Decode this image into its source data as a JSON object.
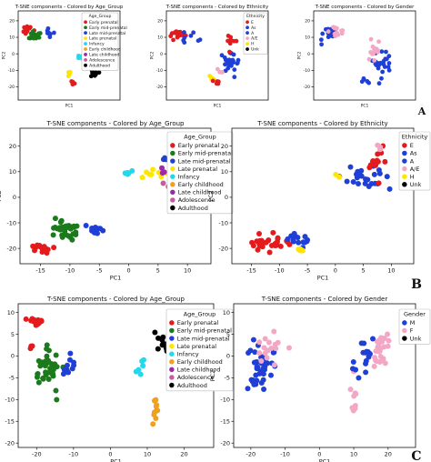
{
  "row_letters": [
    "A",
    "B",
    "C"
  ],
  "colors": {
    "age": {
      "Early prenatal": "#e41a1c",
      "Early mid-prenatal": "#1b7a1b",
      "Late mid-prenatal": "#1f3fd6",
      "Late prenatal": "#ffe600",
      "Infancy": "#22d8ee",
      "Early childhood": "#f0a020",
      "Late childhood": "#9b2aa8",
      "Adolescence": "#c85a9e",
      "Adulthood": "#000000"
    },
    "eth": {
      "E": "#e41a1c",
      "As": "#1f3fd6",
      "A": "#1f3fd6",
      "A/E": "#f4a7c4",
      "H": "#ffe600",
      "Unk": "#000000"
    },
    "gender": {
      "M": "#1f3fd6",
      "F": "#f4a7c4",
      "Unk": "#000000"
    }
  },
  "chart_data": [
    {
      "id": "A1",
      "type": "scatter",
      "title": "T-SNE components - Colored by Age_Group",
      "xlabel": "PC1",
      "ylabel": "PC2",
      "xlim": [
        -22,
        28
      ],
      "ylim": [
        -28,
        26
      ],
      "yticks": [
        20,
        10,
        0,
        -10,
        -20
      ],
      "legend": {
        "title": "Age_Group",
        "placement": "upper-right-inside",
        "entries": [
          "Early prenatal",
          "Early mid-prenatal",
          "Late mid-prenatal",
          "Late prenatal",
          "Infancy",
          "Early childhood",
          "Late childhood",
          "Adolescence",
          "Adulthood"
        ]
      },
      "colorkey": "age",
      "clusters": [
        {
          "cat": "Early prenatal",
          "cx": -18,
          "cy": 15,
          "sx": 2.5,
          "sy": 2.5,
          "n": 14
        },
        {
          "cat": "Early mid-prenatal",
          "cx": -13,
          "cy": 11,
          "sx": 2.5,
          "sy": 3,
          "n": 16
        },
        {
          "cat": "Late mid-prenatal",
          "cx": -7,
          "cy": 13,
          "sx": 2.5,
          "sy": 2,
          "n": 10
        },
        {
          "cat": "Early prenatal",
          "cx": 5,
          "cy": -18,
          "sx": 1.5,
          "sy": 1.5,
          "n": 5
        },
        {
          "cat": "Late prenatal",
          "cx": 3,
          "cy": -12,
          "sx": 2,
          "sy": 2,
          "n": 6
        },
        {
          "cat": "Early childhood",
          "cx": 12,
          "cy": 20,
          "sx": 1.5,
          "sy": 2,
          "n": 7
        },
        {
          "cat": "Infancy",
          "cx": 9,
          "cy": -2,
          "sx": 1.5,
          "sy": 2,
          "n": 5
        },
        {
          "cat": "Late childhood",
          "cx": 13,
          "cy": -6,
          "sx": 2,
          "sy": 3,
          "n": 8
        },
        {
          "cat": "Adulthood",
          "cx": 15,
          "cy": -10,
          "sx": 2.5,
          "sy": 4,
          "n": 14
        },
        {
          "cat": "Adolescence",
          "cx": 12,
          "cy": 4,
          "sx": 1.5,
          "sy": 2,
          "n": 5
        }
      ]
    },
    {
      "id": "A2",
      "type": "scatter",
      "title": "T-SNE components - Colored by Ethnicity",
      "xlabel": "PC1",
      "ylabel": "PC2",
      "xlim": [
        -22,
        28
      ],
      "ylim": [
        -28,
        26
      ],
      "yticks": [
        20,
        10,
        0,
        -10,
        -20
      ],
      "legend": {
        "title": "Ethnicity",
        "placement": "upper-right-inside",
        "entries": [
          "E",
          "As",
          "A",
          "A/E",
          "H",
          "Unk"
        ]
      },
      "colorkey": "eth",
      "clusters": [
        {
          "cat": "E",
          "cx": -16,
          "cy": 13,
          "sx": 4,
          "sy": 3,
          "n": 22
        },
        {
          "cat": "As",
          "cx": -10,
          "cy": 10,
          "sx": 3,
          "sy": 3,
          "n": 8
        },
        {
          "cat": "As",
          "cx": 10,
          "cy": -6,
          "sx": 4,
          "sy": 7,
          "n": 30
        },
        {
          "cat": "E",
          "cx": 10,
          "cy": 8,
          "sx": 3,
          "sy": 4,
          "n": 8
        },
        {
          "cat": "H",
          "cx": 0,
          "cy": -14,
          "sx": 2,
          "sy": 2,
          "n": 4
        },
        {
          "cat": "E",
          "cx": 2,
          "cy": -17,
          "sx": 1.5,
          "sy": 1.5,
          "n": 5
        },
        {
          "cat": "A/E",
          "cx": 4,
          "cy": -10,
          "sx": 2,
          "sy": 2,
          "n": 3
        }
      ]
    },
    {
      "id": "A3",
      "type": "scatter",
      "title": "T-SNE components - Colored by Gender",
      "xlabel": "PC1",
      "ylabel": "PC2",
      "xlim": [
        -22,
        28
      ],
      "ylim": [
        -28,
        26
      ],
      "yticks": [
        20,
        10,
        0,
        -10,
        -20
      ],
      "legend": {
        "title": "",
        "placement": "none",
        "entries": []
      },
      "colorkey": "gender",
      "clusters": [
        {
          "cat": "M",
          "cx": -14,
          "cy": 12,
          "sx": 4,
          "sy": 4,
          "n": 24
        },
        {
          "cat": "F",
          "cx": -11,
          "cy": 14,
          "sx": 4,
          "sy": 3,
          "n": 14
        },
        {
          "cat": "M",
          "cx": 12,
          "cy": -6,
          "sx": 4,
          "sy": 7,
          "n": 24
        },
        {
          "cat": "F",
          "cx": 8,
          "cy": 2,
          "sx": 3,
          "sy": 6,
          "n": 14
        },
        {
          "cat": "M",
          "cx": 3,
          "cy": -16,
          "sx": 2,
          "sy": 2,
          "n": 5
        }
      ]
    },
    {
      "id": "B1",
      "type": "scatter",
      "title": "T-SNE components - Colored by Age_Group",
      "xlabel": "PC1",
      "ylabel": "PC2",
      "xlim": [
        -18.5,
        14
      ],
      "ylim": [
        -26,
        27
      ],
      "xticks": [
        -15,
        -10,
        -5,
        0,
        5,
        10
      ],
      "yticks": [
        20,
        10,
        0,
        -10,
        -20
      ],
      "legend": {
        "title": "Age_Group",
        "placement": "upper-right",
        "entries": [
          "Early prenatal",
          "Early mid-prenatal",
          "Late mid-prenatal",
          "Late prenatal",
          "Infancy",
          "Early childhood",
          "Late childhood",
          "Adolescence",
          "Adulthood"
        ]
      },
      "colorkey": "age",
      "clusters": [
        {
          "cat": "Early prenatal",
          "cx": -15,
          "cy": -20,
          "sx": 1.5,
          "sy": 1.5,
          "n": 16
        },
        {
          "cat": "Early mid-prenatal",
          "cx": -11,
          "cy": -13,
          "sx": 2.3,
          "sy": 4,
          "n": 34
        },
        {
          "cat": "Late mid-prenatal",
          "cx": -6,
          "cy": -13,
          "sx": 2,
          "sy": 1.5,
          "n": 10
        },
        {
          "cat": "Late prenatal",
          "cx": 4,
          "cy": 9,
          "sx": 2,
          "sy": 2.5,
          "n": 8
        },
        {
          "cat": "Infancy",
          "cx": 0,
          "cy": 10,
          "sx": 1.5,
          "sy": 1.5,
          "n": 5
        },
        {
          "cat": "Early childhood",
          "cx": 9,
          "cy": 20,
          "sx": 1.5,
          "sy": 2.5,
          "n": 10
        },
        {
          "cat": "Late childhood",
          "cx": 7,
          "cy": 10,
          "sx": 1.5,
          "sy": 1.5,
          "n": 4
        },
        {
          "cat": "Adolescence",
          "cx": 7,
          "cy": 5,
          "sx": 1.5,
          "sy": 1.5,
          "n": 4
        },
        {
          "cat": "Adulthood",
          "cx": 11,
          "cy": 4,
          "sx": 1.5,
          "sy": 1.5,
          "n": 10
        },
        {
          "cat": "Late mid-prenatal",
          "cx": 6,
          "cy": 14,
          "sx": 1.5,
          "sy": 1.5,
          "n": 3
        }
      ]
    },
    {
      "id": "B2",
      "type": "scatter",
      "title": "T-SNE components - Colored by Ethnicity",
      "xlabel": "PC1",
      "ylabel": "PC2",
      "xlim": [
        -18.5,
        14
      ],
      "ylim": [
        -26,
        27
      ],
      "xticks": [
        -15,
        -10,
        -5,
        0,
        5,
        10
      ],
      "yticks": [
        20,
        10,
        0,
        -10,
        -20
      ],
      "legend": {
        "title": "Ethnicity",
        "placement": "upper-right-inside",
        "entries": [
          "E",
          "As",
          "A",
          "A/E",
          "H",
          "Unk"
        ]
      },
      "colorkey": "eth",
      "clusters": [
        {
          "cat": "E",
          "cx": -12,
          "cy": -18,
          "sx": 3,
          "sy": 3,
          "n": 30
        },
        {
          "cat": "As",
          "cx": -7,
          "cy": -16,
          "sx": 3,
          "sy": 2,
          "n": 14
        },
        {
          "cat": "H",
          "cx": -6,
          "cy": -20,
          "sx": 1.5,
          "sy": 1,
          "n": 4
        },
        {
          "cat": "As",
          "cx": 5,
          "cy": 8,
          "sx": 3.5,
          "sy": 5,
          "n": 24
        },
        {
          "cat": "E",
          "cx": 7,
          "cy": 14,
          "sx": 3,
          "sy": 5,
          "n": 12
        },
        {
          "cat": "A/E",
          "cx": 8,
          "cy": 20,
          "sx": 1.5,
          "sy": 1.5,
          "n": 3
        },
        {
          "cat": "H",
          "cx": 1,
          "cy": 8,
          "sx": 1.5,
          "sy": 1.5,
          "n": 2
        }
      ]
    },
    {
      "id": "C1",
      "type": "scatter",
      "title": "T-SNE components - Colored by Age_Group",
      "xlabel": "PC1",
      "ylabel": "PC2",
      "xlim": [
        -25,
        28
      ],
      "ylim": [
        -21,
        12
      ],
      "xticks": [
        -20,
        -10,
        0,
        10,
        20
      ],
      "yticks": [
        10,
        5,
        0,
        -5,
        -10,
        -15,
        -20
      ],
      "legend": {
        "title": "Age_Group",
        "placement": "upper-right",
        "entries": [
          "Early prenatal",
          "Early mid-prenatal",
          "Late mid-prenatal",
          "Late prenatal",
          "Infancy",
          "Early childhood",
          "Late childhood",
          "Adolescence",
          "Adulthood"
        ]
      },
      "colorkey": "age",
      "clusters": [
        {
          "cat": "Early prenatal",
          "cx": -20,
          "cy": 8,
          "sx": 1.5,
          "sy": 1.2,
          "n": 14
        },
        {
          "cat": "Early mid-prenatal",
          "cx": -17,
          "cy": -3,
          "sx": 3,
          "sy": 4,
          "n": 40
        },
        {
          "cat": "Late mid-prenatal",
          "cx": -11,
          "cy": -2,
          "sx": 2,
          "sy": 2.5,
          "n": 10
        },
        {
          "cat": "Early prenatal",
          "cx": -22,
          "cy": 2,
          "sx": 1,
          "sy": 1,
          "n": 3
        },
        {
          "cat": "Infancy",
          "cx": 8,
          "cy": -3,
          "sx": 1,
          "sy": 1.5,
          "n": 6
        },
        {
          "cat": "Early childhood",
          "cx": 12,
          "cy": -12,
          "sx": 1,
          "sy": 3,
          "n": 10
        },
        {
          "cat": "Late childhood",
          "cx": 17,
          "cy": 4,
          "sx": 1.5,
          "sy": 2.5,
          "n": 10
        },
        {
          "cat": "Adulthood",
          "cx": 15,
          "cy": 3,
          "sx": 2.5,
          "sy": 3.5,
          "n": 22
        },
        {
          "cat": "Adolescence",
          "cx": 18,
          "cy": -1,
          "sx": 1,
          "sy": 1,
          "n": 3
        }
      ]
    },
    {
      "id": "C2",
      "type": "scatter",
      "title": "T-SNE components - Colored by Gender",
      "xlabel": "PC1",
      "ylabel": "PC2",
      "xlim": [
        -25,
        28
      ],
      "ylim": [
        -21,
        12
      ],
      "xticks": [
        -20,
        -10,
        0,
        10,
        20
      ],
      "yticks": [
        10,
        5,
        0,
        -5,
        -10,
        -15,
        -20
      ],
      "legend": {
        "title": "Gender",
        "placement": "upper-right-inside",
        "entries": [
          "M",
          "F",
          "Unk"
        ]
      },
      "colorkey": "gender",
      "clusters": [
        {
          "cat": "M",
          "cx": -17,
          "cy": -2,
          "sx": 3.5,
          "sy": 5,
          "n": 40
        },
        {
          "cat": "F",
          "cx": -15,
          "cy": 2,
          "sx": 3.5,
          "sy": 5,
          "n": 16
        },
        {
          "cat": "F",
          "cx": 18,
          "cy": 2,
          "sx": 2.5,
          "sy": 4,
          "n": 26
        },
        {
          "cat": "M",
          "cx": 13,
          "cy": 0,
          "sx": 2.5,
          "sy": 4,
          "n": 14
        },
        {
          "cat": "F",
          "cx": 10,
          "cy": -10,
          "sx": 1,
          "sy": 4,
          "n": 10
        },
        {
          "cat": "M",
          "cx": 10,
          "cy": -2,
          "sx": 1,
          "sy": 1.5,
          "n": 3
        }
      ]
    }
  ]
}
